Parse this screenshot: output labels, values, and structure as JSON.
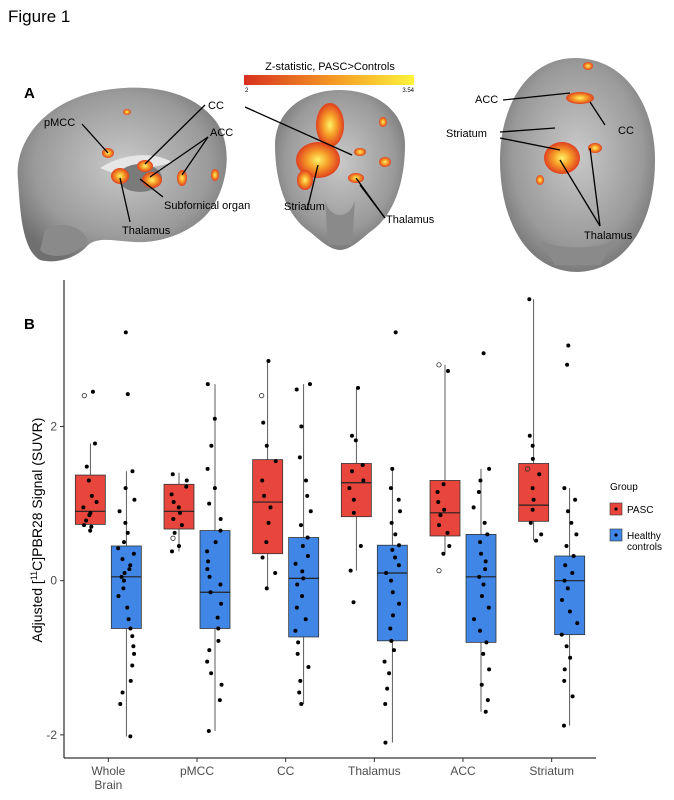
{
  "figure_title": "Figure 1",
  "panel_a": {
    "label": "A",
    "colorbar": {
      "title": "Z-statistic, PASC>Controls",
      "min": "2",
      "max": "3.54"
    },
    "labels": {
      "pmcc": "pMCC",
      "cc_sag": "CC",
      "acc_sag": "ACC",
      "subfornical": "Subfornical organ",
      "thalamus_sag": "Thalamus",
      "striatum_cor": "Striatum",
      "thalamus_cor": "Thalamus",
      "acc_ax": "ACC",
      "cc_ax": "CC",
      "striatum_ax": "Striatum",
      "thalamus_ax": "Thalamus"
    }
  },
  "panel_b": {
    "label": "B"
  },
  "chart_data": {
    "type": "box",
    "categories": [
      "Whole Brain",
      "pMCC",
      "CC",
      "Thalamus",
      "ACC",
      "Striatum"
    ],
    "category_labels": [
      [
        "Whole",
        "Brain"
      ],
      [
        "pMCC"
      ],
      [
        "CC"
      ],
      [
        "Thalamus"
      ],
      [
        "ACC"
      ],
      [
        "Striatum"
      ]
    ],
    "ylabel_parts": [
      "Adjusted [",
      "11",
      "C]PBR28 Signal (SUVR)"
    ],
    "yticks": [
      -2,
      0,
      2
    ],
    "ylim": [
      -2.3,
      3.9
    ],
    "grid": false,
    "legend": {
      "title": "Group",
      "position": "right",
      "entries": [
        [
          "PASC"
        ],
        [
          "Healthy",
          "controls"
        ]
      ]
    },
    "series": [
      {
        "name": "PASC",
        "color": "#e8453c",
        "boxes": [
          {
            "q1": 0.73,
            "median": 0.9,
            "q3": 1.37,
            "whisker_low": 0.62,
            "whisker_high": 1.78,
            "points": [
              0.65,
              0.7,
              0.72,
              0.78,
              0.85,
              0.88,
              0.95,
              1.02,
              1.1,
              1.3,
              1.48,
              1.78,
              2.45
            ],
            "outliers": [
              2.4
            ]
          },
          {
            "q1": 0.67,
            "median": 0.9,
            "q3": 1.25,
            "whisker_low": 0.38,
            "whisker_high": 1.4,
            "points": [
              0.38,
              0.45,
              0.62,
              0.72,
              0.8,
              0.88,
              0.95,
              1.02,
              1.12,
              1.22,
              1.3,
              1.38
            ],
            "outliers": [
              0.55
            ]
          },
          {
            "q1": 0.35,
            "median": 1.02,
            "q3": 1.57,
            "whisker_low": -0.1,
            "whisker_high": 2.85,
            "points": [
              -0.1,
              0.1,
              0.3,
              0.5,
              0.75,
              0.95,
              1.1,
              1.3,
              1.55,
              1.75,
              2.05,
              2.85
            ],
            "outliers": [
              2.4
            ]
          },
          {
            "q1": 0.83,
            "median": 1.27,
            "q3": 1.52,
            "whisker_low": 0.13,
            "whisker_high": 2.5,
            "points": [
              -0.28,
              0.13,
              0.45,
              0.88,
              1.05,
              1.2,
              1.3,
              1.42,
              1.5,
              1.82,
              1.88,
              2.5
            ],
            "outliers": []
          },
          {
            "q1": 0.58,
            "median": 0.88,
            "q3": 1.3,
            "whisker_low": 0.35,
            "whisker_high": 2.8,
            "points": [
              0.35,
              0.45,
              0.62,
              0.72,
              0.85,
              0.92,
              1.02,
              1.15,
              1.25,
              2.72
            ],
            "outliers": [
              0.13,
              2.8
            ]
          },
          {
            "q1": 0.77,
            "median": 0.98,
            "q3": 1.52,
            "whisker_low": 0.52,
            "whisker_high": 3.65,
            "points": [
              0.52,
              0.6,
              0.75,
              0.92,
              1.05,
              1.2,
              1.38,
              1.58,
              1.75,
              1.88,
              3.65
            ],
            "outliers": [
              1.45
            ]
          }
        ]
      },
      {
        "name": "Healthy controls",
        "color": "#3f86e6",
        "boxes": [
          {
            "q1": -0.62,
            "median": 0.05,
            "q3": 0.45,
            "whisker_low": -2.02,
            "whisker_high": 1.42,
            "points": [
              -2.02,
              -1.6,
              -1.45,
              -1.3,
              -1.1,
              -0.95,
              -0.85,
              -0.72,
              -0.62,
              -0.5,
              -0.35,
              -0.2,
              -0.1,
              0,
              0.05,
              0.1,
              0.15,
              0.2,
              0.28,
              0.35,
              0.42,
              0.5,
              0.62,
              0.75,
              0.9,
              1.05,
              1.2,
              1.42,
              2.42,
              3.22
            ],
            "outliers": []
          },
          {
            "q1": -0.62,
            "median": -0.15,
            "q3": 0.65,
            "whisker_low": -1.95,
            "whisker_high": 2.55,
            "points": [
              -1.95,
              -1.55,
              -1.35,
              -1.2,
              -1.05,
              -0.9,
              -0.78,
              -0.62,
              -0.48,
              -0.3,
              -0.15,
              -0.05,
              0.05,
              0.15,
              0.25,
              0.38,
              0.5,
              0.65,
              0.8,
              1.0,
              1.2,
              1.45,
              1.75,
              2.1,
              2.55
            ],
            "outliers": []
          },
          {
            "q1": -0.73,
            "median": 0.03,
            "q3": 0.56,
            "whisker_low": -1.6,
            "whisker_high": 2.55,
            "points": [
              -1.6,
              -1.45,
              -1.3,
              -1.12,
              -0.95,
              -0.8,
              -0.65,
              -0.5,
              -0.35,
              -0.2,
              -0.05,
              0.03,
              0.12,
              0.22,
              0.32,
              0.45,
              0.56,
              0.72,
              0.9,
              1.1,
              1.3,
              1.6,
              2.0,
              2.48,
              2.55
            ],
            "outliers": []
          },
          {
            "q1": -0.78,
            "median": 0.1,
            "q3": 0.46,
            "whisker_low": -2.1,
            "whisker_high": 1.45,
            "points": [
              -2.1,
              -1.6,
              -1.4,
              -1.2,
              -1.05,
              -0.9,
              -0.78,
              -0.62,
              -0.45,
              -0.3,
              -0.15,
              0,
              0.1,
              0.2,
              0.3,
              0.4,
              0.46,
              0.6,
              0.75,
              0.9,
              1.05,
              1.2,
              1.45,
              3.22
            ],
            "outliers": []
          },
          {
            "q1": -0.8,
            "median": 0.05,
            "q3": 0.6,
            "whisker_low": -1.7,
            "whisker_high": 1.45,
            "points": [
              -1.7,
              -1.55,
              -1.35,
              -1.15,
              -0.95,
              -0.8,
              -0.65,
              -0.5,
              -0.35,
              -0.2,
              -0.05,
              0.05,
              0.15,
              0.25,
              0.35,
              0.5,
              0.6,
              0.75,
              0.95,
              1.15,
              1.3,
              1.45,
              2.95
            ],
            "outliers": []
          },
          {
            "q1": -0.7,
            "median": 0,
            "q3": 0.32,
            "whisker_low": -1.88,
            "whisker_high": 1.2,
            "points": [
              -1.88,
              -1.5,
              -1.3,
              -1.15,
              -1.0,
              -0.85,
              -0.7,
              -0.55,
              -0.4,
              -0.25,
              -0.1,
              0,
              0.1,
              0.2,
              0.32,
              0.45,
              0.6,
              0.75,
              0.9,
              1.05,
              1.2,
              2.8,
              3.05
            ],
            "outliers": []
          }
        ]
      }
    ]
  }
}
